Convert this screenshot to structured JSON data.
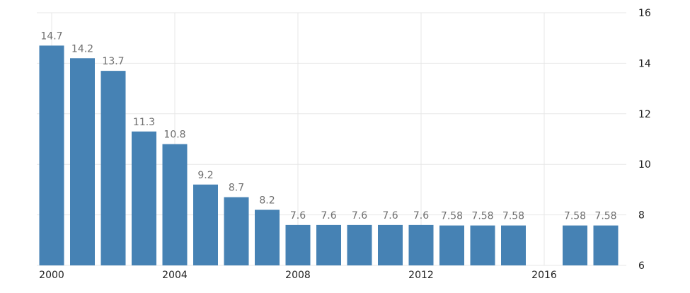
{
  "chart_data": {
    "type": "bar",
    "title": "",
    "xlabel": "",
    "ylabel": "",
    "x": [
      2000,
      2001,
      2002,
      2003,
      2004,
      2005,
      2006,
      2007,
      2008,
      2009,
      2010,
      2011,
      2012,
      2013,
      2014,
      2015,
      2016,
      2017,
      2018
    ],
    "values": [
      14.7,
      14.2,
      13.7,
      11.3,
      10.8,
      9.2,
      8.7,
      8.2,
      7.6,
      7.6,
      7.6,
      7.6,
      7.6,
      7.58,
      7.58,
      7.58,
      null,
      7.58,
      7.58
    ],
    "labels": [
      "14.7",
      "14.2",
      "13.7",
      "11.3",
      "10.8",
      "9.2",
      "8.7",
      "8.2",
      "7.6",
      "7.6",
      "7.6",
      "7.6",
      "7.6",
      "7.58",
      "7.58",
      "7.58",
      "",
      "7.58",
      "7.58"
    ],
    "ylim": [
      6,
      16
    ],
    "yticks": [
      6,
      8,
      10,
      12,
      14,
      16
    ],
    "yaxis_position": "right",
    "xticks": [
      2000,
      2004,
      2008,
      2012,
      2016
    ],
    "grid": true,
    "bar_color": "#4682b4"
  }
}
